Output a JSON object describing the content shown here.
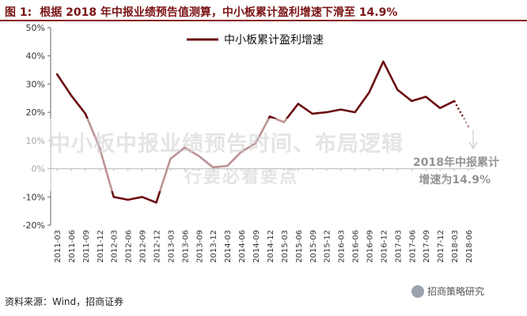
{
  "header": {
    "figure_label": "图 1:",
    "title": "根据 2018 年中报业绩预告值测算，中小板累计盈利增速下滑至 14.9%"
  },
  "footer": {
    "source": "资料来源：Wind，招商证券",
    "brand": "招商策略研究"
  },
  "watermark": {
    "line1": "中小板中报业绩预告时间、布局逻辑",
    "line2": "行要必看要点"
  },
  "colors": {
    "series": "#6b0e12",
    "title": "#7b1416",
    "axis": "#666666"
  },
  "chart_data": {
    "type": "line",
    "ylim": [
      -20,
      50
    ],
    "yticks": [
      -20,
      -10,
      0,
      10,
      20,
      30,
      40,
      50
    ],
    "ytick_labels": [
      "-20%",
      "-10%",
      "0%",
      "10%",
      "20%",
      "30%",
      "40%",
      "50%"
    ],
    "grid": false,
    "legend_position": "top-center",
    "categories": [
      "2011-03",
      "2011-06",
      "2011-09",
      "2011-12",
      "2012-03",
      "2012-06",
      "2012-09",
      "2012-12",
      "2013-03",
      "2013-06",
      "2013-09",
      "2013-12",
      "2014-03",
      "2014-06",
      "2014-09",
      "2014-12",
      "2015-03",
      "2015-06",
      "2015-09",
      "2015-12",
      "2016-03",
      "2016-06",
      "2016-09",
      "2016-12",
      "2017-03",
      "2017-06",
      "2017-09",
      "2017-12",
      "2018-03",
      "2018-06"
    ],
    "series": [
      {
        "name": "中小板累计盈利增速",
        "values": [
          33.5,
          26,
          19.5,
          7.5,
          -10,
          -11,
          -10,
          -12,
          3.5,
          7.5,
          4.5,
          0.5,
          1,
          6,
          9,
          18.5,
          16.5,
          23,
          19.5,
          20,
          21,
          20,
          27,
          38,
          28,
          24,
          25.5,
          21.5,
          24,
          14.9
        ],
        "dotted_last_segment": true
      }
    ],
    "annotations": [
      {
        "text_line1": "2018年中报累计",
        "text_line2": "增速为14.9%",
        "category": "2018-06",
        "value": 14.9
      }
    ]
  }
}
